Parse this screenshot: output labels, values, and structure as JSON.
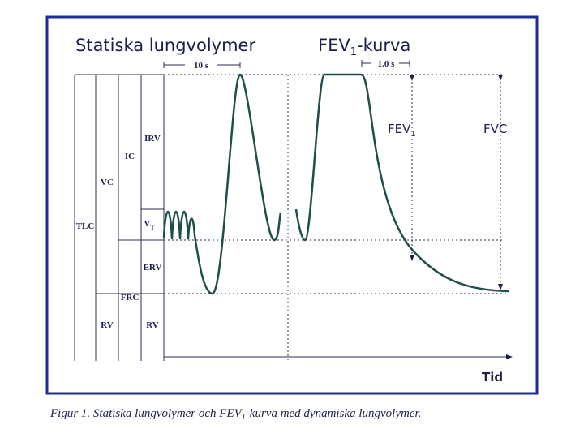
{
  "titles": {
    "static": "Statiska lungvolymer",
    "fev": {
      "main": "FEV",
      "sub": "1",
      "rest": "-kurva"
    }
  },
  "time_markers": {
    "left": "10 s",
    "right": "1.0 s"
  },
  "arrows": {
    "fev1": {
      "main": "FEV",
      "sub": "1"
    },
    "fvc": "FVC"
  },
  "volumes": {
    "tlc": "TLC",
    "vc": "VC",
    "rv_left": "RV",
    "ic": "IC",
    "frc": "FRC",
    "irv": "IRV",
    "vt": {
      "main": "V",
      "sub": "T"
    },
    "erv": "ERV",
    "rv_right": "RV"
  },
  "axis_label": "Tid",
  "caption": {
    "main": "Figur 1. Statiska lungvolymer och FEV",
    "sub": "1",
    "rest": "-kurva med dynamiska lungvolymer."
  }
}
